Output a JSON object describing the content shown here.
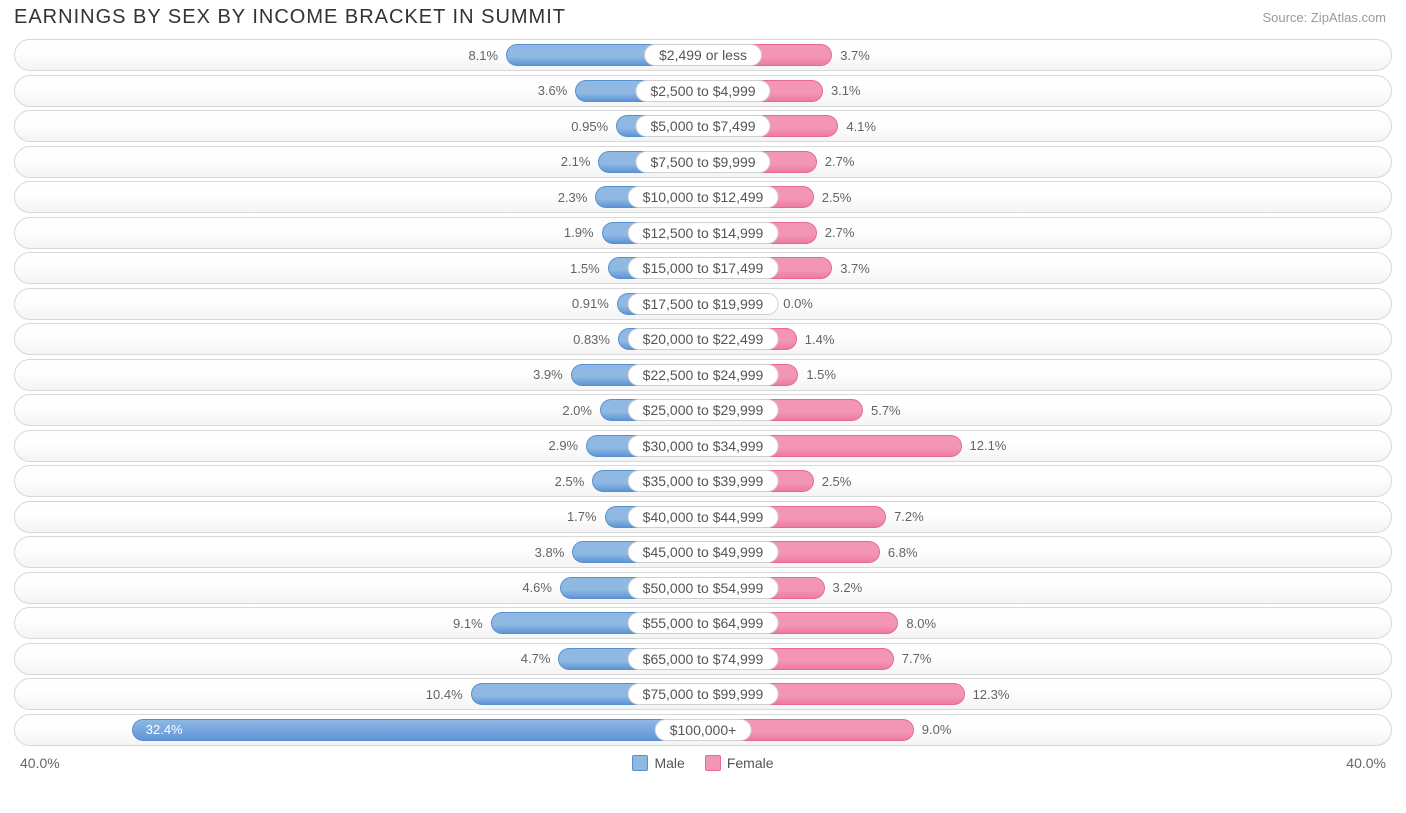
{
  "title": "EARNINGS BY SEX BY INCOME BRACKET IN SUMMIT",
  "source": "Source: ZipAtlas.com",
  "axis_max_label": "40.0%",
  "axis_max": 40.0,
  "legend": {
    "male": "Male",
    "female": "Female"
  },
  "colors": {
    "male_fill": "#8fb8e3",
    "male_border": "#5a8fcf",
    "male_fill_dark": "#5f95d6",
    "female_fill": "#f396b5",
    "female_border": "#e46a95",
    "female_fill_dark": "#ed7aa3",
    "row_border": "#d8d8d8",
    "text": "#646464"
  },
  "rows": [
    {
      "label": "$2,499 or less",
      "male": 8.1,
      "male_txt": "8.1%",
      "female": 3.7,
      "female_txt": "3.7%"
    },
    {
      "label": "$2,500 to $4,999",
      "male": 3.6,
      "male_txt": "3.6%",
      "female": 3.1,
      "female_txt": "3.1%"
    },
    {
      "label": "$5,000 to $7,499",
      "male": 0.95,
      "male_txt": "0.95%",
      "female": 4.1,
      "female_txt": "4.1%"
    },
    {
      "label": "$7,500 to $9,999",
      "male": 2.1,
      "male_txt": "2.1%",
      "female": 2.7,
      "female_txt": "2.7%"
    },
    {
      "label": "$10,000 to $12,499",
      "male": 2.3,
      "male_txt": "2.3%",
      "female": 2.5,
      "female_txt": "2.5%"
    },
    {
      "label": "$12,500 to $14,999",
      "male": 1.9,
      "male_txt": "1.9%",
      "female": 2.7,
      "female_txt": "2.7%"
    },
    {
      "label": "$15,000 to $17,499",
      "male": 1.5,
      "male_txt": "1.5%",
      "female": 3.7,
      "female_txt": "3.7%"
    },
    {
      "label": "$17,500 to $19,999",
      "male": 0.91,
      "male_txt": "0.91%",
      "female": 0.0,
      "female_txt": "0.0%"
    },
    {
      "label": "$20,000 to $22,499",
      "male": 0.83,
      "male_txt": "0.83%",
      "female": 1.4,
      "female_txt": "1.4%"
    },
    {
      "label": "$22,500 to $24,999",
      "male": 3.9,
      "male_txt": "3.9%",
      "female": 1.5,
      "female_txt": "1.5%"
    },
    {
      "label": "$25,000 to $29,999",
      "male": 2.0,
      "male_txt": "2.0%",
      "female": 5.7,
      "female_txt": "5.7%"
    },
    {
      "label": "$30,000 to $34,999",
      "male": 2.9,
      "male_txt": "2.9%",
      "female": 12.1,
      "female_txt": "12.1%"
    },
    {
      "label": "$35,000 to $39,999",
      "male": 2.5,
      "male_txt": "2.5%",
      "female": 2.5,
      "female_txt": "2.5%"
    },
    {
      "label": "$40,000 to $44,999",
      "male": 1.7,
      "male_txt": "1.7%",
      "female": 7.2,
      "female_txt": "7.2%"
    },
    {
      "label": "$45,000 to $49,999",
      "male": 3.8,
      "male_txt": "3.8%",
      "female": 6.8,
      "female_txt": "6.8%"
    },
    {
      "label": "$50,000 to $54,999",
      "male": 4.6,
      "male_txt": "4.6%",
      "female": 3.2,
      "female_txt": "3.2%"
    },
    {
      "label": "$55,000 to $64,999",
      "male": 9.1,
      "male_txt": "9.1%",
      "female": 8.0,
      "female_txt": "8.0%"
    },
    {
      "label": "$65,000 to $74,999",
      "male": 4.7,
      "male_txt": "4.7%",
      "female": 7.7,
      "female_txt": "7.7%"
    },
    {
      "label": "$75,000 to $99,999",
      "male": 10.4,
      "male_txt": "10.4%",
      "female": 12.3,
      "female_txt": "12.3%"
    },
    {
      "label": "$100,000+",
      "male": 32.4,
      "male_txt": "32.4%",
      "female": 9.0,
      "female_txt": "9.0%",
      "male_inside": true
    }
  ]
}
